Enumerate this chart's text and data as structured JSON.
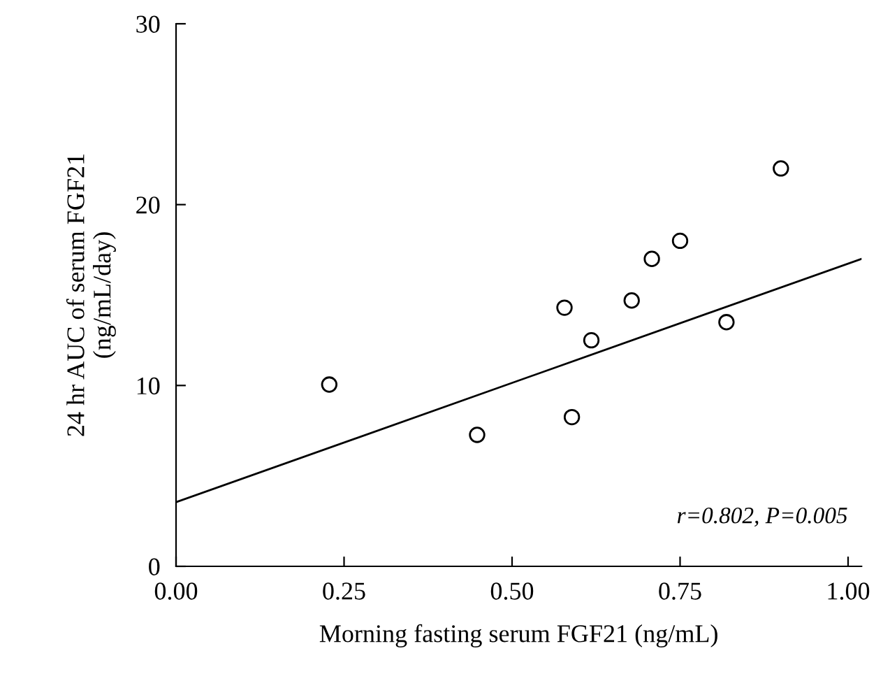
{
  "chart_data": {
    "type": "scatter",
    "xlabel": "Morning fasting serum FGF21 (ng/mL)",
    "ylabel": "24 hr AUC of serum FGF21\n(ng/mL/day)",
    "series": [
      {
        "color": "#000000",
        "marker": "circle",
        "x": [
          0.228,
          0.448,
          0.578,
          0.589,
          0.618,
          0.678,
          0.708,
          0.75,
          0.819,
          0.9
        ],
        "values": [
          10.05,
          7.27,
          14.3,
          8.25,
          12.5,
          14.7,
          17.0,
          18.0,
          13.5,
          22.0
        ]
      },
      {
        "type": "line",
        "color": "#000000",
        "marker": "none",
        "x": [
          0.0,
          1.02
        ],
        "values": [
          3.55,
          17.0
        ]
      }
    ],
    "annotations": [
      "r=0.802, P=0.005"
    ],
    "xlim": [
      0,
      1.02
    ],
    "ylim": [
      0,
      30
    ],
    "xticks": [
      {
        "value": 0,
        "label": "0.00"
      },
      0.25,
      {
        "value": 0.5,
        "label": "0.50"
      },
      0.75,
      {
        "value": 1,
        "label": "1.00"
      }
    ],
    "yticks": [
      0,
      10,
      20,
      30
    ],
    "grid": false,
    "legend": false
  }
}
